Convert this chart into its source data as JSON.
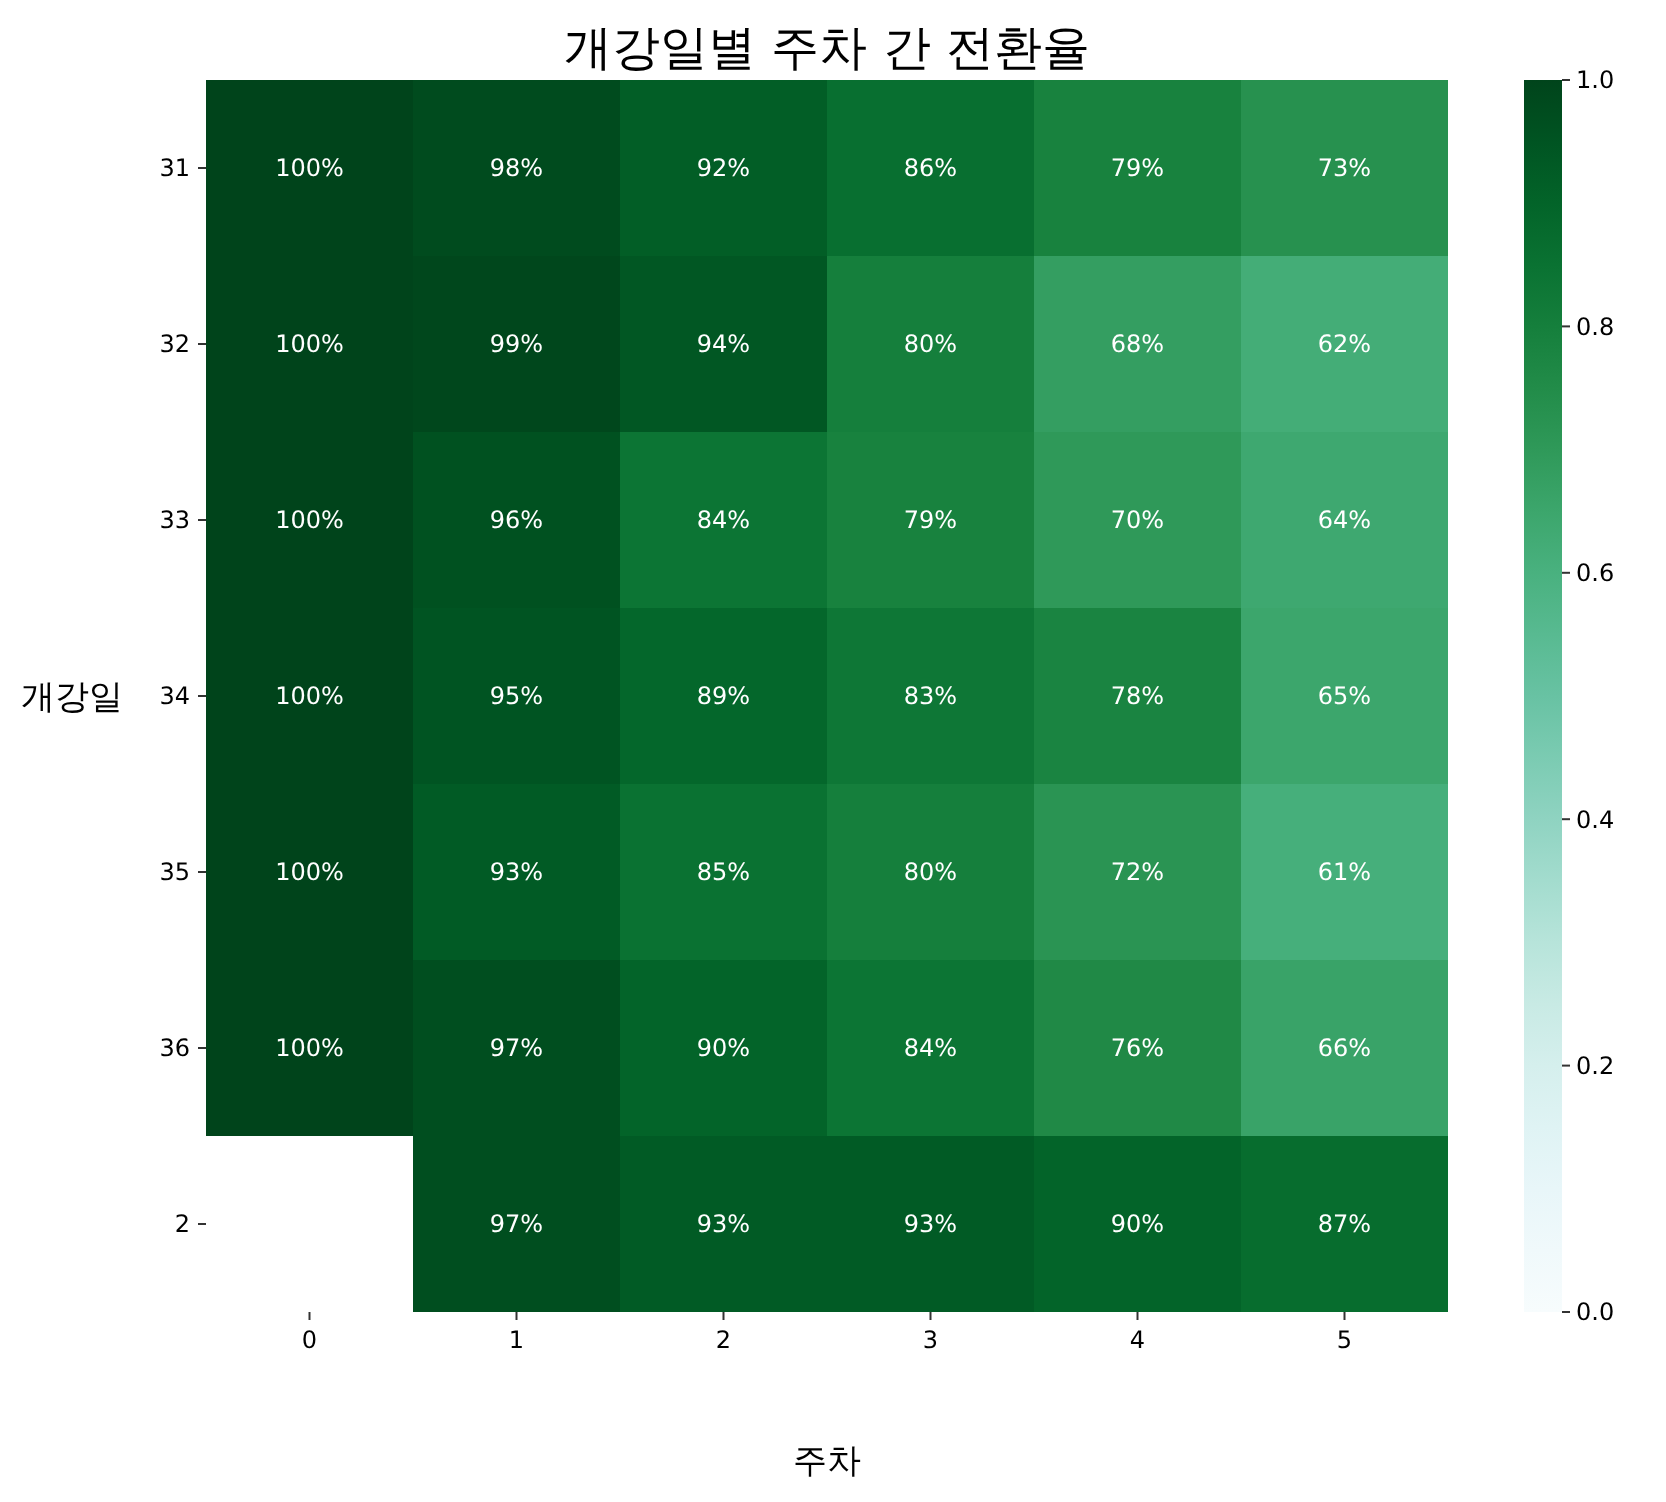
{
  "chart_data": {
    "type": "heatmap",
    "title": "개강일별 주차 간 전환율",
    "xlabel": "주차",
    "ylabel": "개강일",
    "categories": [
      "0",
      "1",
      "2",
      "3",
      "4",
      "5"
    ],
    "y_categories": [
      "31",
      "32",
      "33",
      "34",
      "35",
      "36",
      "2"
    ],
    "cells": [
      [
        1.0,
        0.98,
        0.92,
        0.86,
        0.79,
        0.73
      ],
      [
        1.0,
        0.99,
        0.94,
        0.8,
        0.68,
        0.62
      ],
      [
        1.0,
        0.96,
        0.84,
        0.79,
        0.7,
        0.64
      ],
      [
        1.0,
        0.95,
        0.89,
        0.83,
        0.78,
        0.65
      ],
      [
        1.0,
        0.93,
        0.85,
        0.8,
        0.72,
        0.61
      ],
      [
        1.0,
        0.97,
        0.9,
        0.84,
        0.76,
        0.66
      ],
      [
        null,
        0.97,
        0.93,
        0.93,
        0.9,
        0.87
      ]
    ],
    "cell_labels": [
      [
        "100%",
        "98%",
        "92%",
        "86%",
        "79%",
        "73%"
      ],
      [
        "100%",
        "99%",
        "94%",
        "80%",
        "68%",
        "62%"
      ],
      [
        "100%",
        "96%",
        "84%",
        "79%",
        "70%",
        "64%"
      ],
      [
        "100%",
        "95%",
        "89%",
        "83%",
        "78%",
        "65%"
      ],
      [
        "100%",
        "93%",
        "85%",
        "80%",
        "72%",
        "61%"
      ],
      [
        "100%",
        "97%",
        "90%",
        "84%",
        "76%",
        "66%"
      ],
      [
        null,
        "97%",
        "93%",
        "93%",
        "90%",
        "87%"
      ]
    ],
    "clim": [
      0,
      1
    ],
    "cticks": [
      {
        "value": 0,
        "label": "0.0"
      },
      0.2,
      0.4,
      0.6,
      0.8,
      {
        "value": 1,
        "label": "1.0"
      }
    ]
  }
}
